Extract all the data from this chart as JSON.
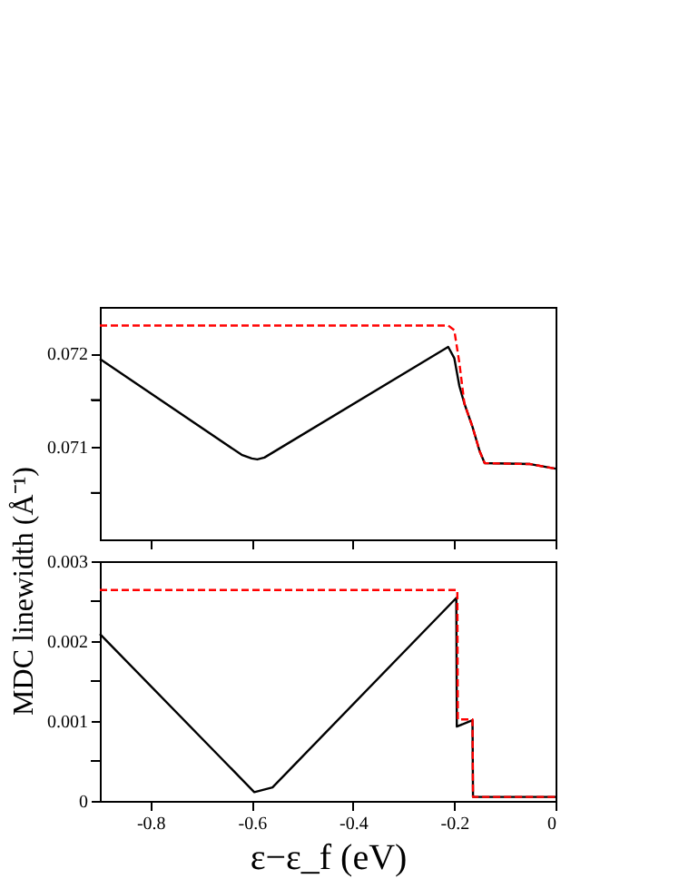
{
  "chart_data": [
    {
      "type": "line",
      "ylabel": "MDC linewidth (Å⁻¹)",
      "xlim": [
        -0.9,
        0
      ],
      "xticks": [
        -0.8,
        -0.6,
        -0.4,
        -0.2,
        0
      ],
      "ylim": [
        0.07,
        0.0725
      ],
      "yticks": [
        {
          "value": 0.0705,
          "label": null
        },
        0.071,
        {
          "value": 0.0715,
          "label": null
        },
        0.072
      ],
      "tick_labels": "y",
      "grid": false,
      "series": [
        {
          "color": "#000000",
          "line_style": "solid",
          "x": [
            -0.9,
            -0.62,
            -0.6,
            -0.589,
            -0.575,
            -0.212,
            -0.2,
            -0.19,
            -0.18,
            -0.164,
            -0.15,
            -0.14,
            -0.05,
            0
          ],
          "values": [
            0.07194,
            0.07091,
            0.07087,
            0.07086,
            0.07088,
            0.07207,
            0.07195,
            0.07165,
            0.07146,
            0.07121,
            0.07095,
            0.07082,
            0.07081,
            0.07076
          ]
        },
        {
          "color": "#ff0000",
          "line_style": "dashed",
          "x": [
            -0.9,
            -0.212,
            -0.2,
            -0.19,
            -0.18,
            -0.164,
            -0.15,
            -0.14,
            -0.05,
            0
          ],
          "values": [
            0.0723,
            0.0723,
            0.07225,
            0.0719,
            0.07146,
            0.07121,
            0.07095,
            0.07082,
            0.07081,
            0.07076
          ]
        }
      ]
    },
    {
      "type": "line",
      "xlabel": "ε−ε_f (eV)",
      "xlim": [
        -0.9,
        0
      ],
      "xticks": [
        -0.8,
        -0.6,
        -0.4,
        -0.2,
        0
      ],
      "ylim": [
        0,
        0.003
      ],
      "yticks": [
        0,
        {
          "value": 0.0005,
          "label": null
        },
        0.001,
        {
          "value": 0.0015,
          "label": null
        },
        0.002,
        {
          "value": 0.0025,
          "label": null
        },
        0.003
      ],
      "grid": false,
      "series": [
        {
          "color": "#000000",
          "line_style": "solid",
          "x": [
            -0.9,
            -0.595,
            -0.559,
            -0.196,
            -0.195,
            -0.164,
            -0.163,
            0
          ],
          "values": [
            0.00209,
            0.00011,
            0.00017,
            0.00254,
            0.00093,
            0.00101,
            5e-05,
            5e-05
          ]
        },
        {
          "color": "#ff0000",
          "line_style": "dashed",
          "x": [
            -0.9,
            -0.194,
            -0.193,
            -0.164,
            -0.163,
            0
          ],
          "values": [
            0.00264,
            0.00264,
            0.00102,
            0.00102,
            5e-05,
            5e-05
          ]
        }
      ]
    }
  ]
}
